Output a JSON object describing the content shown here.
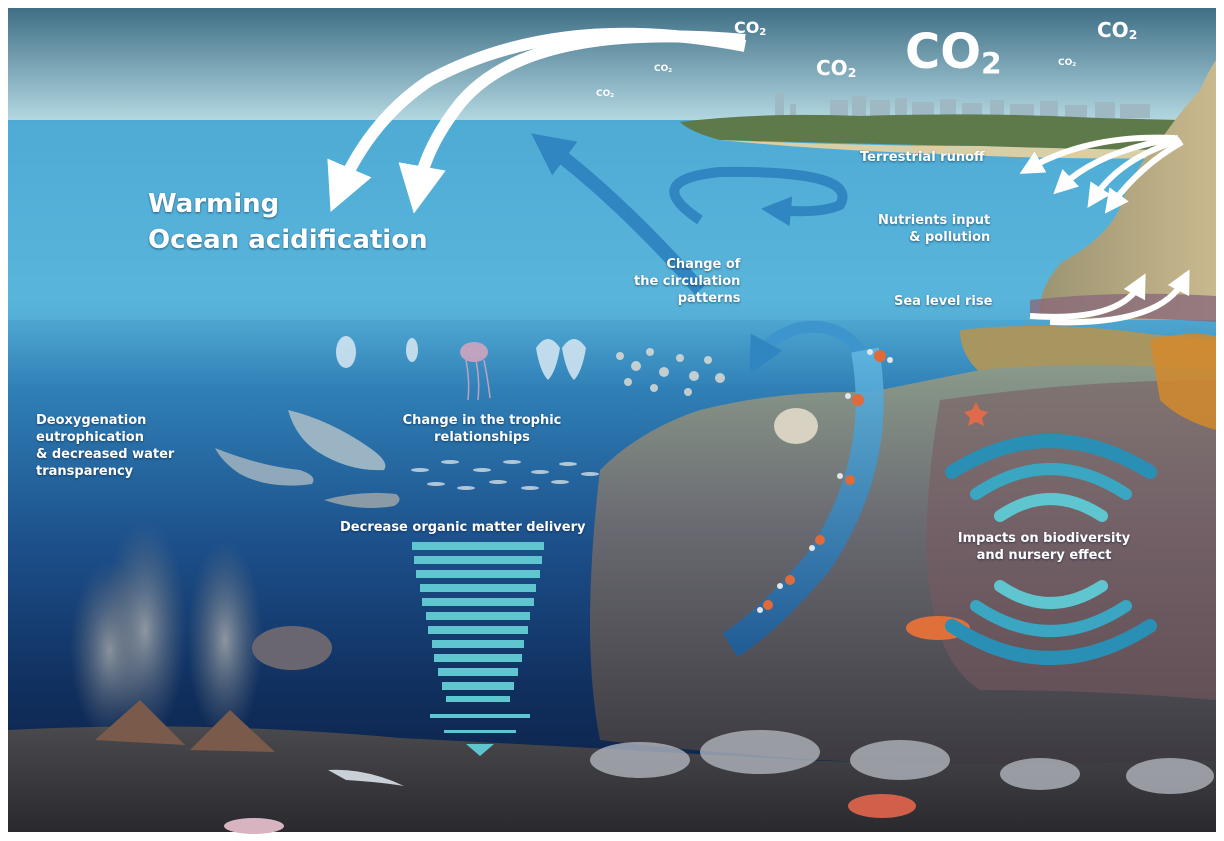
{
  "co2_labels": [
    {
      "text": "CO",
      "sub": "2"
    },
    {
      "text": "CO",
      "sub": "2"
    },
    {
      "text": "CO",
      "sub": "2"
    },
    {
      "text": "CO",
      "sub": "2"
    },
    {
      "text": "CO",
      "sub": "2"
    },
    {
      "text": "CO",
      "sub": "2"
    },
    {
      "text": "CO",
      "sub": "2"
    }
  ],
  "headline": {
    "line1": "Warming",
    "line2": "Ocean acidification"
  },
  "labels": {
    "terrestrial_runoff": "Terrestrial runoff",
    "nutrients_1": "Nutrients input",
    "nutrients_2": "& pollution",
    "sea_level": "Sea level rise",
    "circulation_1": "Change of",
    "circulation_2": "the circulation",
    "circulation_3": "patterns",
    "deoxy_1": "Deoxygenation",
    "deoxy_2": "eutrophication",
    "deoxy_3": "& decreased water",
    "deoxy_4": "transparency",
    "trophic_1": "Change in the trophic",
    "trophic_2": "relationships",
    "organic": "Decrease organic matter delivery",
    "biodiv_1": "Impacts on biodiversity",
    "biodiv_2": "and nursery effect"
  },
  "colors": {
    "sky_top": "#3f6f86",
    "sky_bottom": "#b9dde6",
    "sea_surface": "#4aa6cf",
    "deep_water": "#0e2a55",
    "seafloor": "#3a3a3e",
    "teal_band": "#5fc6cf",
    "arrow_white": "#ffffff",
    "arrow_blue": "#2b7fb8"
  }
}
